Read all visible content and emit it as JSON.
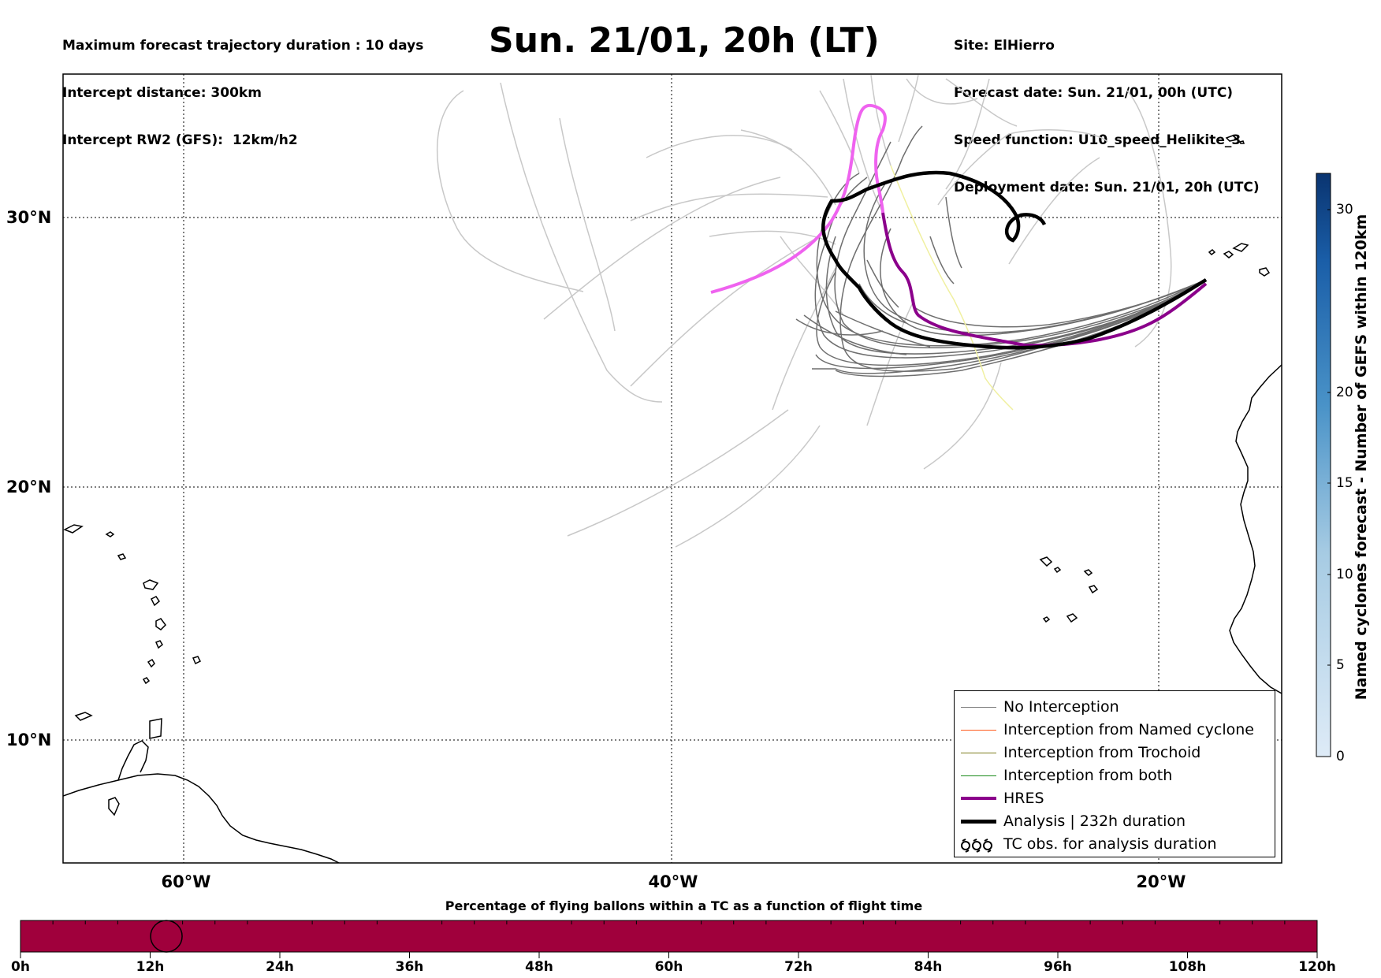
{
  "header": {
    "left_lines": [
      "Maximum forecast trajectory duration : 10 days",
      "Intercept distance: 300km",
      "Intercept RW2 (GFS):  12km/h2"
    ],
    "title": "Sun. 21/01, 20h (LT)",
    "right_lines": [
      "Site: ElHierro",
      "Forecast date: Sun. 21/01, 00h (UTC)",
      "Speed function: U10_speed_Helikite_3",
      "Deployment date: Sun. 21/01, 20h (UTC)"
    ]
  },
  "map": {
    "lat_labels": [
      "30°N",
      "20°N",
      "10°N"
    ],
    "lon_labels": [
      "60°W",
      "40°W",
      "20°W"
    ],
    "lon_range": [
      -65,
      -15
    ],
    "lat_range": [
      5.3,
      34.6
    ],
    "gridlines_lon": [
      -60,
      -40,
      -20
    ],
    "gridlines_lat": [
      30,
      20,
      10
    ],
    "colors": {
      "gefs": "#c8c8c8",
      "no_interception": "#6e6e6e",
      "hres": "#8b008b",
      "hres_early": "#ef63ef",
      "analysis": "#000000",
      "yellow_track": "#f0f0a0"
    }
  },
  "legend": {
    "items": [
      {
        "label": "No Interception",
        "color": "#7a7a7a",
        "width": 1.5
      },
      {
        "label": "Interception from Named cyclone",
        "color": "#ff5a1a",
        "width": 1.5
      },
      {
        "label": "Interception from Trochoid",
        "color": "#7d7d1e",
        "width": 1.5
      },
      {
        "label": "Interception from both",
        "color": "#1a8a1a",
        "width": 1.5
      },
      {
        "label": "HRES",
        "color": "#8b008b",
        "width": 4
      },
      {
        "label": "Analysis | 232h duration",
        "color": "#000000",
        "width": 5
      },
      {
        "label": "TC obs. for analysis duration",
        "color": "#000000",
        "symbol": "tc-obs-icon"
      }
    ]
  },
  "colorbar": {
    "title": "Named cyclones forecast - Number of GEFS within 120km",
    "ticks": [
      "0",
      "5",
      "10",
      "15",
      "20",
      "30"
    ],
    "range": [
      0,
      32
    ]
  },
  "percentage_bar": {
    "title": "Percentage of flying ballons within a TC as a function of flight time",
    "ticks": [
      "0h",
      "12h",
      "24h",
      "36h",
      "48h",
      "60h",
      "72h",
      "84h",
      "96h",
      "108h",
      "120h"
    ],
    "fill_color": "#a0003c",
    "marker_hour": 13.5
  }
}
